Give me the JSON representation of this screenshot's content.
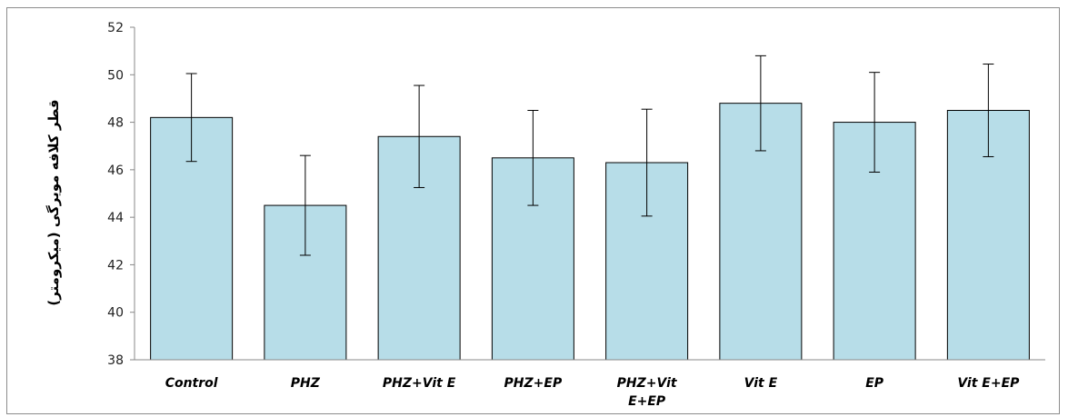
{
  "chart_data": {
    "type": "bar",
    "ylabel": "قطر کلافه مویرگی (میکرومتر)",
    "categories": [
      [
        "Control"
      ],
      [
        "PHZ"
      ],
      [
        "PHZ+Vit E"
      ],
      [
        "PHZ+EP"
      ],
      [
        "PHZ+Vit",
        "E+EP"
      ],
      [
        "Vit E"
      ],
      [
        "EP"
      ],
      [
        "Vit E+EP"
      ]
    ],
    "values": [
      48.2,
      44.5,
      47.4,
      46.5,
      46.3,
      48.8,
      48.0,
      48.5
    ],
    "errors": [
      1.85,
      2.1,
      2.15,
      2.0,
      2.25,
      2.0,
      2.1,
      1.95
    ],
    "ylim": [
      38,
      52
    ],
    "yticks": [
      38,
      40,
      42,
      44,
      46,
      48,
      50,
      52
    ],
    "colors": {
      "bar_fill": "#b7dde8",
      "bar_stroke": "#000000",
      "error_bar": "#000000"
    },
    "grid": false,
    "legend": "none"
  }
}
